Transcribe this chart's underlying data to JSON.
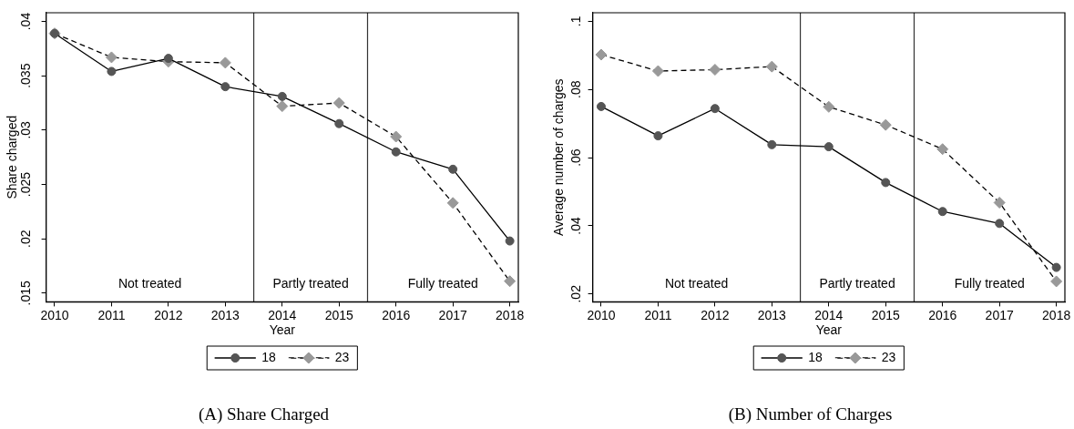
{
  "chart_data": [
    {
      "type": "line",
      "title": "(A) Share Charged",
      "xlabel": "Year",
      "ylabel": "Share charged",
      "x": [
        2010,
        2011,
        2012,
        2013,
        2014,
        2015,
        2016,
        2017,
        2018
      ],
      "series": [
        {
          "name": "18",
          "color": "#555555",
          "marker": "circle",
          "line_style": "solid",
          "values": [
            0.0389,
            0.0354,
            0.0366,
            0.034,
            0.0331,
            0.0306,
            0.028,
            0.0264,
            0.0198
          ]
        },
        {
          "name": "23",
          "color": "#999999",
          "marker": "diamond",
          "line_style": "dashed",
          "values": [
            0.0389,
            0.0367,
            0.0363,
            0.0362,
            0.0322,
            0.0325,
            0.0294,
            0.0233,
            0.0161
          ]
        }
      ],
      "xlim": [
        2009.85,
        2018.15
      ],
      "xticks": [
        2010,
        2011,
        2012,
        2013,
        2014,
        2015,
        2016,
        2017,
        2018
      ],
      "ylim": [
        0.0142,
        0.0408
      ],
      "yticks": [
        {
          "value": 0.015,
          "label": ".015"
        },
        {
          "value": 0.02,
          "label": ".02"
        },
        {
          "value": 0.025,
          "label": ".025"
        },
        {
          "value": 0.03,
          "label": ".03"
        },
        {
          "value": 0.035,
          "label": ".035"
        },
        {
          "value": 0.04,
          "label": ".04"
        }
      ],
      "ref_lines": [
        {
          "axis": "x",
          "value": 2013.5
        },
        {
          "axis": "x",
          "value": 2015.5
        }
      ],
      "annotations": [
        "Not treated",
        "Partly treated",
        "Fully treated"
      ],
      "legend": "bottom"
    },
    {
      "type": "line",
      "title": "(B) Number of Charges",
      "xlabel": "Year",
      "ylabel": "Average number of charges",
      "x": [
        2010,
        2011,
        2012,
        2013,
        2014,
        2015,
        2016,
        2017,
        2018
      ],
      "series": [
        {
          "name": "18",
          "color": "#555555",
          "marker": "circle",
          "line_style": "solid",
          "values": [
            0.075,
            0.0664,
            0.0744,
            0.0638,
            0.0632,
            0.0527,
            0.0442,
            0.0407,
            0.0278
          ]
        },
        {
          "name": "23",
          "color": "#999999",
          "marker": "diamond",
          "line_style": "dashed",
          "values": [
            0.0902,
            0.0854,
            0.0858,
            0.0867,
            0.0749,
            0.0696,
            0.0625,
            0.0468,
            0.0237
          ]
        }
      ],
      "xlim": [
        2009.85,
        2018.15
      ],
      "xticks": [
        2010,
        2011,
        2012,
        2013,
        2014,
        2015,
        2016,
        2017,
        2018
      ],
      "ylim": [
        0.0177,
        0.1025
      ],
      "yticks": [
        {
          "value": 0.02,
          "label": ".02"
        },
        {
          "value": 0.04,
          "label": ".04"
        },
        {
          "value": 0.06,
          "label": ".06"
        },
        {
          "value": 0.08,
          "label": ".08"
        },
        {
          "value": 0.1,
          "label": ".1"
        }
      ],
      "ref_lines": [
        {
          "axis": "x",
          "value": 2013.5
        },
        {
          "axis": "x",
          "value": 2015.5
        }
      ],
      "annotations": [
        "Not treated",
        "Partly treated",
        "Fully treated"
      ],
      "legend": "bottom"
    }
  ]
}
